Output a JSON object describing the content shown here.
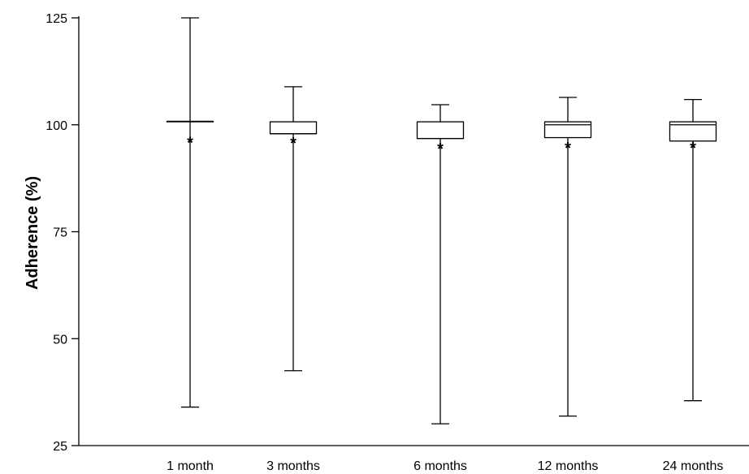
{
  "chart_data": {
    "type": "box",
    "title": "",
    "xlabel": "",
    "ylabel": "Adherence (%)",
    "ylim": [
      25,
      125
    ],
    "yticks": [
      25,
      50,
      75,
      100,
      125
    ],
    "grid": false,
    "categories": [
      "1 month",
      "3 months",
      "6 months",
      "12 months",
      "24 months"
    ],
    "boxes": [
      {
        "category": "1 month",
        "min": 34.0,
        "q1": 100.8,
        "median": 100.8,
        "q3": 100.8,
        "max": 125.0,
        "mean": 97.0
      },
      {
        "category": "3 months",
        "min": 42.5,
        "q1": 97.9,
        "median": 97.9,
        "q3": 100.7,
        "max": 108.9,
        "mean": 96.9
      },
      {
        "category": "6 months",
        "min": 30.1,
        "q1": 96.8,
        "median": 96.8,
        "q3": 100.7,
        "max": 104.7,
        "mean": 95.6
      },
      {
        "category": "12 months",
        "min": 31.9,
        "q1": 97.0,
        "median": 100.0,
        "q3": 100.7,
        "max": 106.4,
        "mean": 95.8
      },
      {
        "category": "24 months",
        "min": 35.5,
        "q1": 96.2,
        "median": 100.0,
        "q3": 100.7,
        "max": 105.9,
        "mean": 95.8
      }
    ]
  }
}
